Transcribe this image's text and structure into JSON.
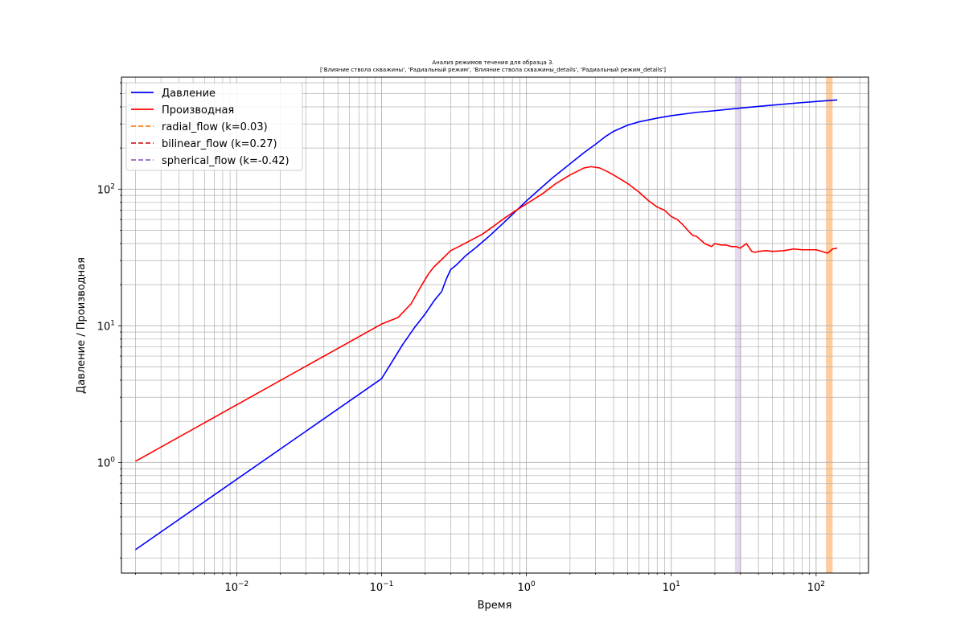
{
  "chart_data": {
    "type": "line",
    "title_lines": [
      "Анализ режимов течения для образца 3.",
      "['Влияние ствола скважины', 'Радиальный режим', 'Влияние ствола скважины_details', 'Радиальный режим_details']"
    ],
    "xlabel": "Время",
    "ylabel": "Давление / Производная",
    "xscale": "log",
    "yscale": "log",
    "xlim": [
      0.0016,
      230
    ],
    "ylim": [
      0.155,
      660
    ],
    "grid": true,
    "legend_position": "top-left",
    "x_ticks": [
      {
        "value": 0.01,
        "base": "10",
        "exp": "−2"
      },
      {
        "value": 0.1,
        "base": "10",
        "exp": "−1"
      },
      {
        "value": 1,
        "base": "10",
        "exp": "0"
      },
      {
        "value": 10,
        "base": "10",
        "exp": "1"
      },
      {
        "value": 100,
        "base": "10",
        "exp": "2"
      }
    ],
    "y_ticks": [
      {
        "value": 1,
        "base": "10",
        "exp": "0"
      },
      {
        "value": 10,
        "base": "10",
        "exp": "1"
      },
      {
        "value": 100,
        "base": "10",
        "exp": "2"
      }
    ],
    "series": [
      {
        "name": "Давление",
        "color": "#0000ff",
        "style": "solid",
        "x": [
          0.002,
          0.1,
          0.12,
          0.14,
          0.17,
          0.2,
          0.23,
          0.26,
          0.28,
          0.3,
          0.33,
          0.38,
          0.45,
          0.55,
          0.7,
          1.0,
          1.5,
          2.0,
          2.5,
          3.0,
          3.5,
          4.0,
          5.0,
          6.0,
          8.0,
          10.0,
          15.0,
          20.0,
          30.0,
          50.0,
          80.0,
          100.0,
          140.0
        ],
        "values": [
          0.23,
          4.1,
          5.6,
          7.3,
          9.8,
          12.2,
          15.2,
          17.8,
          22.0,
          25.8,
          28.0,
          32.5,
          37.5,
          45.0,
          57.0,
          82.0,
          120.0,
          153.0,
          185.0,
          213.0,
          242.0,
          265.0,
          294.0,
          311.0,
          331.0,
          345.0,
          365.0,
          375.0,
          392.0,
          412.0,
          430.0,
          438.0,
          450.0
        ]
      },
      {
        "name": "Производная",
        "color": "#ff0000",
        "style": "solid",
        "x": [
          0.002,
          0.1,
          0.13,
          0.16,
          0.19,
          0.21,
          0.23,
          0.26,
          0.3,
          0.35,
          0.4,
          0.5,
          0.6,
          0.7,
          0.85,
          1.0,
          1.3,
          1.6,
          2.0,
          2.5,
          2.8,
          3.2,
          3.6,
          4.0,
          5.0,
          6.0,
          7.0,
          8.0,
          9.0,
          10.0,
          11.0,
          12.0,
          13.0,
          14.0,
          15.0,
          17.0,
          19.0,
          20.0,
          22.0,
          24.0,
          26.0,
          28.0,
          30.0,
          33.0,
          36.0,
          38.0,
          40.0,
          45.0,
          50.0,
          60.0,
          70.0,
          80.0,
          100.0,
          110.0,
          120.0,
          130.0,
          140.0
        ],
        "values": [
          1.02,
          10.3,
          11.5,
          14.5,
          20.0,
          23.8,
          27.0,
          30.5,
          35.5,
          38.5,
          41.5,
          47.0,
          54.0,
          61.0,
          70.0,
          78.0,
          93.0,
          110.0,
          127.0,
          143.0,
          146.0,
          143.0,
          135.0,
          127.0,
          110.0,
          95.0,
          82.0,
          74.0,
          70.0,
          63.0,
          60.0,
          55.0,
          50.0,
          46.0,
          45.0,
          40.0,
          38.0,
          40.0,
          39.0,
          39.0,
          38.0,
          38.0,
          37.0,
          40.0,
          35.0,
          34.5,
          35.0,
          35.5,
          35.0,
          35.5,
          36.5,
          36.0,
          36.0,
          35.0,
          34.0,
          36.5,
          37.0
        ]
      },
      {
        "name": "radial_flow (k=0.03)",
        "color": "#ff7f0e",
        "style": "dashed"
      },
      {
        "name": "bilinear_flow (k=0.27)",
        "color": "#d62728",
        "style": "dashed"
      },
      {
        "name": "spherical_flow (k=-0.42)",
        "color": "#9467bd",
        "style": "dashed"
      }
    ],
    "shaded_regions": [
      {
        "x_range": [
          27.5,
          30.5
        ],
        "color": "#9467bd",
        "opacity": 0.25
      },
      {
        "x_range": [
          117,
          130
        ],
        "color": "#ff7f0e",
        "opacity": 0.4
      }
    ]
  }
}
